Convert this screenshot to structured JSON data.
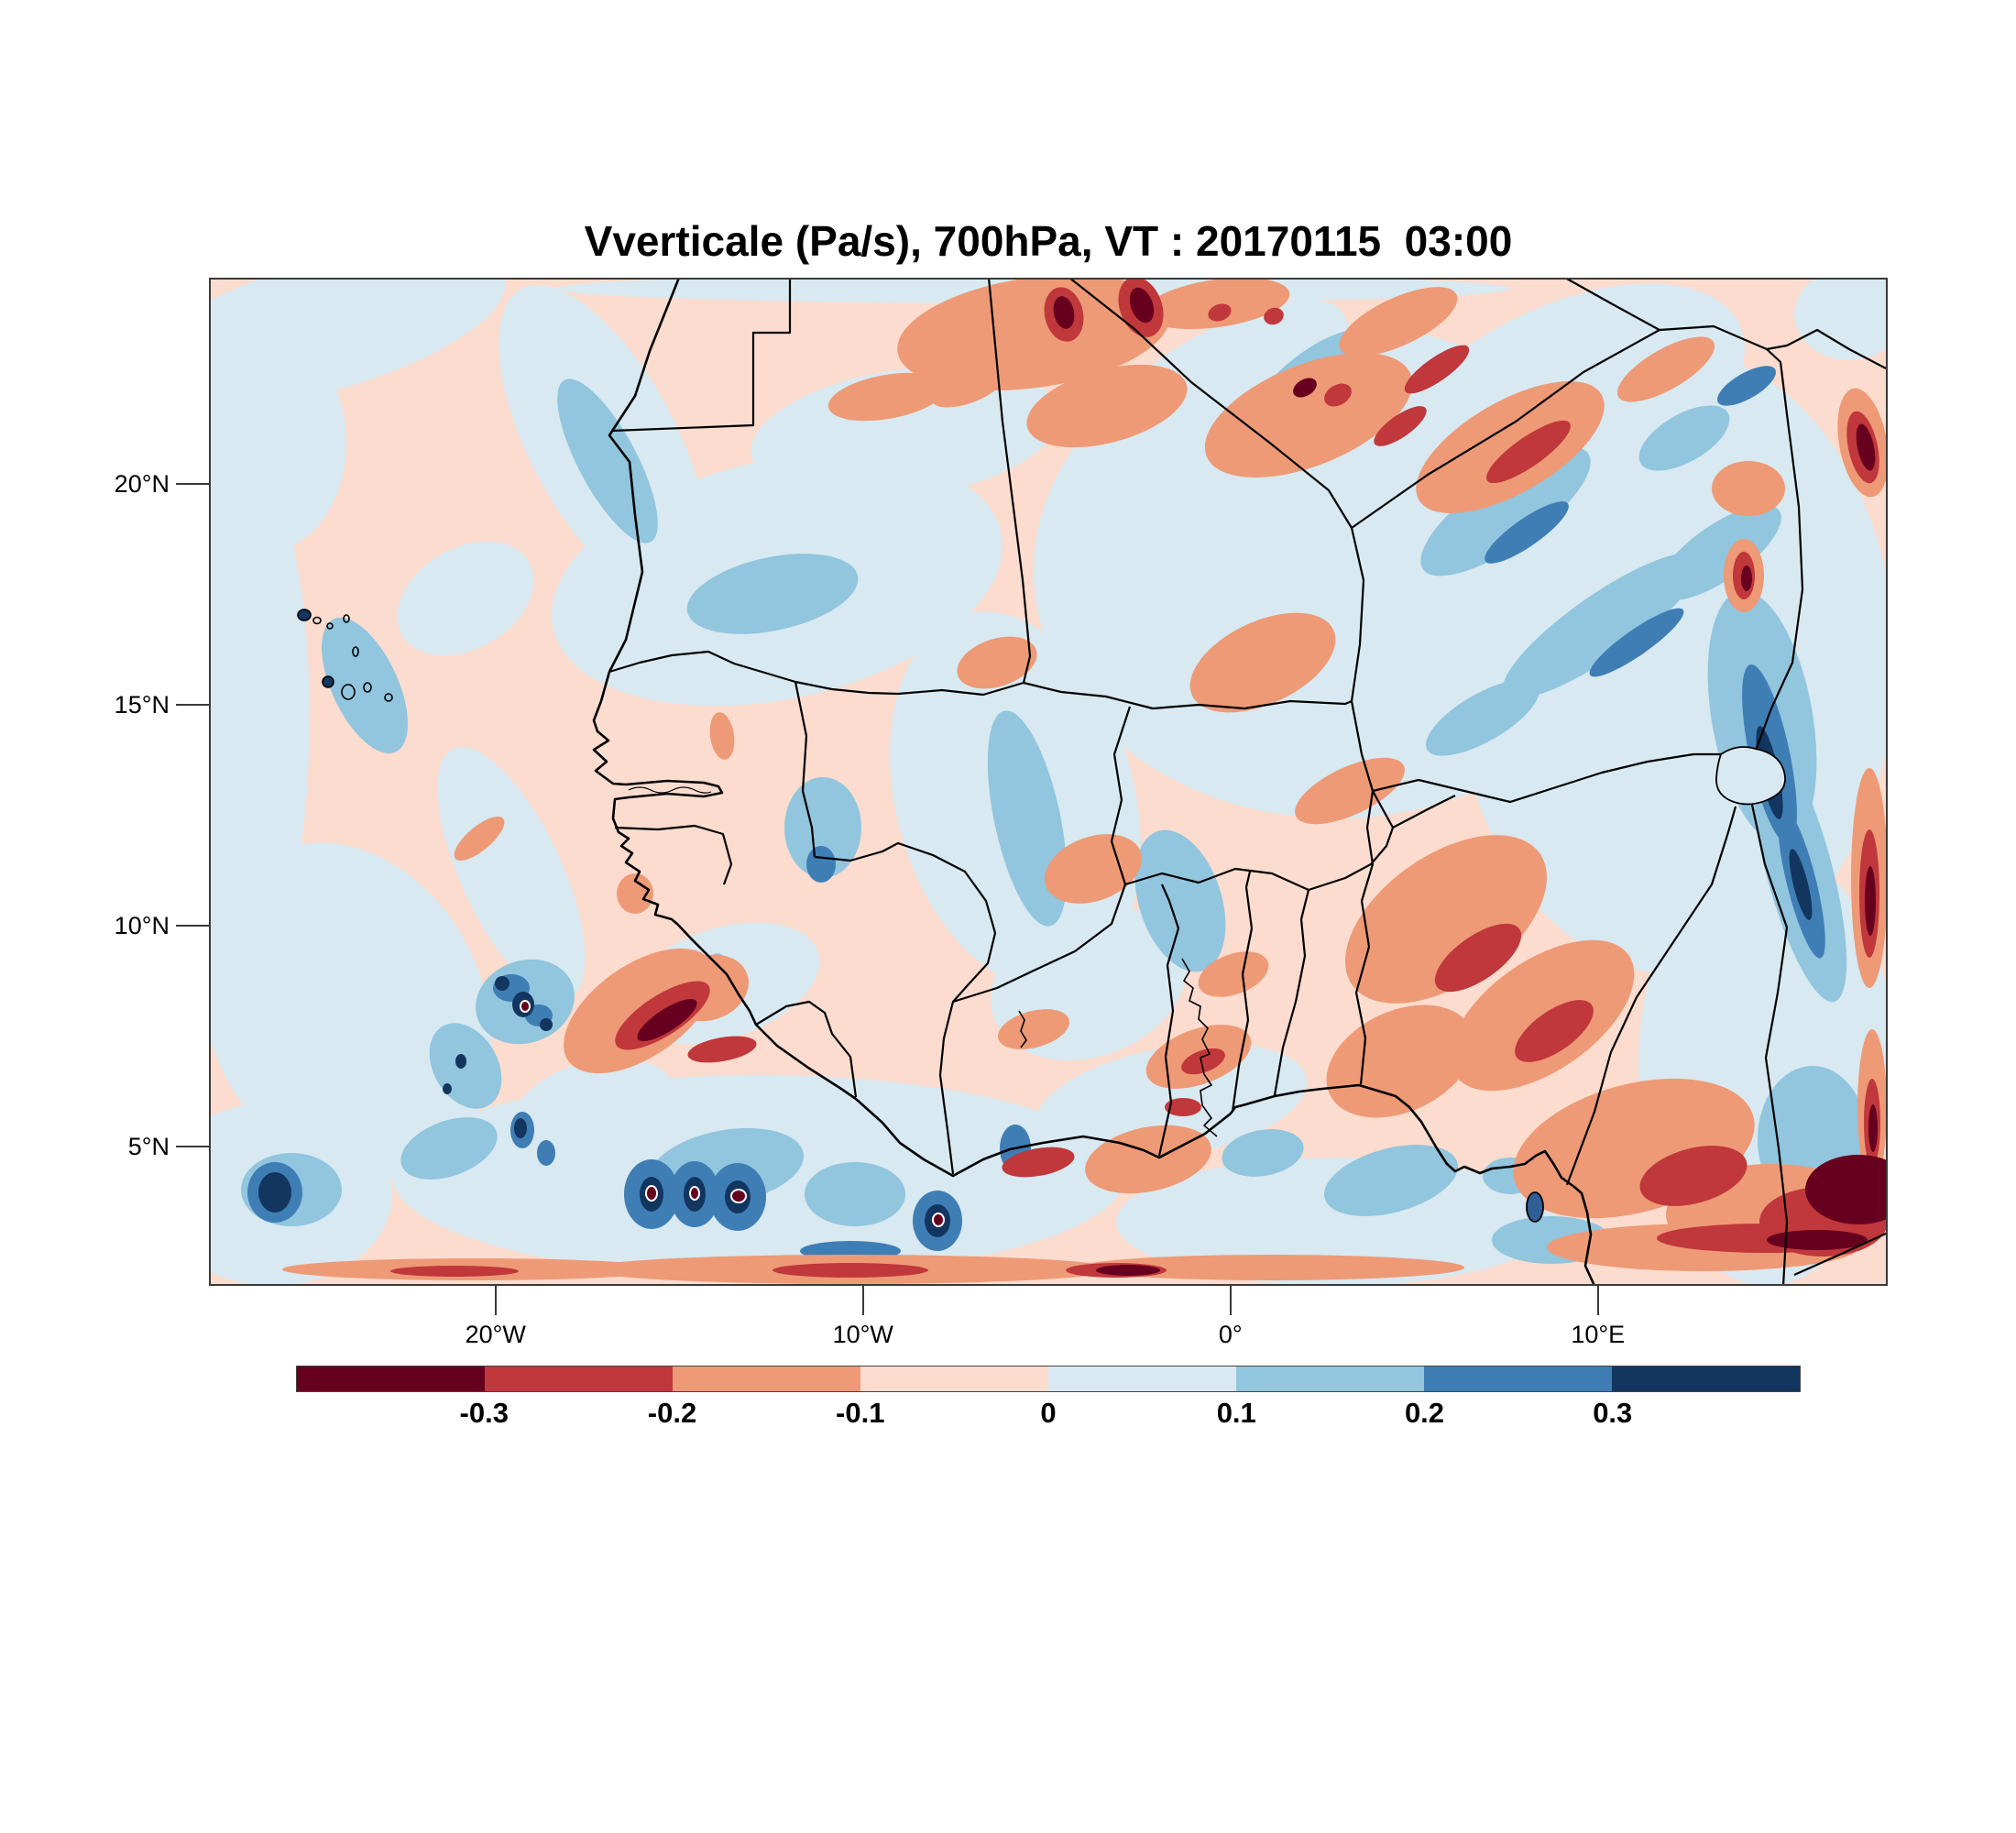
{
  "chart_data": {
    "type": "filled_contour_map",
    "title": "Vverticale (Pa/s), 700hPa, VT : 20170115  03:00",
    "variable": "Vverticale",
    "units": "Pa/s",
    "pressure_level": "700hPa",
    "valid_time_label": "VT : 20170115  03:00",
    "region": "West Africa",
    "grid": false,
    "legend_position": "bottom",
    "colorbar": {
      "orientation": "horizontal",
      "levels": [
        -0.3,
        -0.2,
        -0.1,
        0,
        0.1,
        0.2,
        0.3
      ],
      "tick_labels": [
        "-0.3",
        "-0.2",
        "-0.1",
        "0",
        "0.1",
        "0.2",
        "0.3"
      ],
      "colors": [
        "#67001f",
        "#c0383b",
        "#ee9a76",
        "#fbdcce",
        "#d8e9f1",
        "#92c5de",
        "#3f7eb5",
        "#12365f"
      ]
    },
    "x_axis": {
      "tick_labels": [
        "20°W",
        "10°W",
        "0°",
        "10°E"
      ],
      "tick_values_lon": [
        -20,
        -10,
        0,
        10
      ]
    },
    "y_axis": {
      "tick_labels": [
        "20°N",
        "15°N",
        "10°N",
        "5°N"
      ],
      "tick_values_lat": [
        20,
        15,
        10,
        5
      ]
    },
    "extent": {
      "lon_min": -27.8,
      "lon_max": 17.9,
      "lat_min": 1.9,
      "lat_max": 24.7
    }
  },
  "colors": {
    "frame": "#3a3a3a",
    "coastline": "#000000",
    "negative_extreme": "#67001f",
    "positive_extreme": "#12365f"
  }
}
